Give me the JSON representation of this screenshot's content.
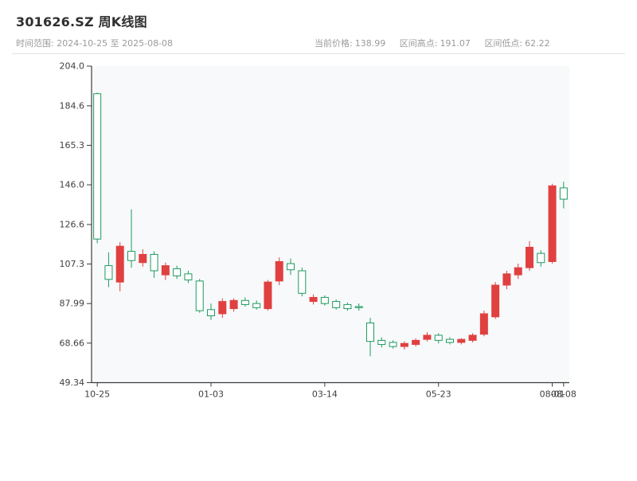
{
  "header": {
    "title": "301626.SZ 周K线图",
    "time_range": "时间范围: 2024-10-25 至 2025-08-08",
    "stats": [
      {
        "label": "当前价格:",
        "value": "138.99"
      },
      {
        "label": "区间高点:",
        "value": "191.07"
      },
      {
        "label": "区间低点:",
        "value": "62.22"
      }
    ]
  },
  "chart_data": {
    "type": "candlestick",
    "title": "301626.SZ 周K线图",
    "period": "weekly",
    "ylabel": "",
    "xlabel": "",
    "y_min": 49.34,
    "y_max": 204.0,
    "grid": false,
    "up_color": "#e04040",
    "down_color": "#1f9b5e",
    "axis_color": "#3c3c3c",
    "plot_bg": "#f7f9fb",
    "y_tick_labels": [
      "204.0",
      "184.6",
      "165.3",
      "146.0",
      "126.6",
      "107.3",
      "87.99",
      "68.66",
      "49.34"
    ],
    "x_ticks": [
      {
        "index": 0,
        "label": "10-25"
      },
      {
        "index": 10,
        "label": "01-03"
      },
      {
        "index": 20,
        "label": "03-14"
      },
      {
        "index": 30,
        "label": "05-23"
      },
      {
        "index": 40,
        "label": "08-01"
      },
      {
        "index": 41,
        "label": "08-08"
      }
    ],
    "candles": [
      {
        "date": "2024-10-25",
        "o": 190.5,
        "h": 191.07,
        "l": 117.5,
        "c": 119.5
      },
      {
        "date": "2024-11-01",
        "o": 106.5,
        "h": 113.0,
        "l": 96.0,
        "c": 99.8
      },
      {
        "date": "2024-11-08",
        "o": 98.5,
        "h": 118.0,
        "l": 94.0,
        "c": 116.0
      },
      {
        "date": "2024-11-15",
        "o": 113.5,
        "h": 134.0,
        "l": 105.5,
        "c": 109.0
      },
      {
        "date": "2024-11-22",
        "o": 108.0,
        "h": 114.5,
        "l": 106.0,
        "c": 112.0
      },
      {
        "date": "2024-11-29",
        "o": 112.0,
        "h": 113.5,
        "l": 100.5,
        "c": 104.0
      },
      {
        "date": "2024-12-06",
        "o": 102.0,
        "h": 108.0,
        "l": 99.5,
        "c": 106.5
      },
      {
        "date": "2024-12-13",
        "o": 105.0,
        "h": 106.5,
        "l": 100.0,
        "c": 101.5
      },
      {
        "date": "2024-12-20",
        "o": 102.5,
        "h": 104.0,
        "l": 98.0,
        "c": 99.5
      },
      {
        "date": "2024-12-27",
        "o": 99.0,
        "h": 100.0,
        "l": 83.5,
        "c": 84.5
      },
      {
        "date": "2025-01-03",
        "o": 85.0,
        "h": 88.0,
        "l": 80.0,
        "c": 82.0
      },
      {
        "date": "2025-01-10",
        "o": 83.0,
        "h": 90.5,
        "l": 81.0,
        "c": 89.0
      },
      {
        "date": "2025-01-17",
        "o": 85.5,
        "h": 90.5,
        "l": 84.0,
        "c": 89.5
      },
      {
        "date": "2025-01-24",
        "o": 89.5,
        "h": 91.0,
        "l": 86.5,
        "c": 87.5
      },
      {
        "date": "2025-01-31",
        "o": 88.0,
        "h": 89.5,
        "l": 85.0,
        "c": 86.0
      },
      {
        "date": "2025-02-07",
        "o": 85.5,
        "h": 99.5,
        "l": 84.5,
        "c": 98.5
      },
      {
        "date": "2025-02-14",
        "o": 99.0,
        "h": 110.5,
        "l": 97.0,
        "c": 108.5
      },
      {
        "date": "2025-02-21",
        "o": 107.5,
        "h": 110.0,
        "l": 102.0,
        "c": 104.5
      },
      {
        "date": "2025-02-28",
        "o": 104.0,
        "h": 105.5,
        "l": 91.5,
        "c": 93.0
      },
      {
        "date": "2025-03-07",
        "o": 89.0,
        "h": 92.5,
        "l": 87.5,
        "c": 91.0
      },
      {
        "date": "2025-03-14",
        "o": 91.0,
        "h": 92.0,
        "l": 87.0,
        "c": 88.0
      },
      {
        "date": "2025-03-21",
        "o": 89.0,
        "h": 90.0,
        "l": 85.0,
        "c": 86.0
      },
      {
        "date": "2025-03-28",
        "o": 87.5,
        "h": 88.5,
        "l": 84.5,
        "c": 85.5
      },
      {
        "date": "2025-04-04",
        "o": 86.5,
        "h": 88.0,
        "l": 84.5,
        "c": 86.0
      },
      {
        "date": "2025-04-11",
        "o": 78.5,
        "h": 81.0,
        "l": 62.22,
        "c": 69.5
      },
      {
        "date": "2025-04-18",
        "o": 70.0,
        "h": 71.5,
        "l": 66.5,
        "c": 68.0
      },
      {
        "date": "2025-04-25",
        "o": 69.0,
        "h": 70.0,
        "l": 66.0,
        "c": 67.0
      },
      {
        "date": "2025-05-02",
        "o": 67.0,
        "h": 69.5,
        "l": 65.5,
        "c": 68.5
      },
      {
        "date": "2025-05-09",
        "o": 68.0,
        "h": 71.0,
        "l": 67.0,
        "c": 70.0
      },
      {
        "date": "2025-05-16",
        "o": 70.5,
        "h": 74.0,
        "l": 69.5,
        "c": 72.5
      },
      {
        "date": "2025-05-23",
        "o": 72.5,
        "h": 73.5,
        "l": 68.5,
        "c": 70.0
      },
      {
        "date": "2025-05-30",
        "o": 70.5,
        "h": 71.5,
        "l": 68.0,
        "c": 69.0
      },
      {
        "date": "2025-06-06",
        "o": 69.0,
        "h": 71.0,
        "l": 68.0,
        "c": 70.5
      },
      {
        "date": "2025-06-13",
        "o": 70.0,
        "h": 73.5,
        "l": 69.0,
        "c": 72.5
      },
      {
        "date": "2025-06-20",
        "o": 73.0,
        "h": 84.5,
        "l": 72.0,
        "c": 83.0
      },
      {
        "date": "2025-06-27",
        "o": 81.5,
        "h": 98.5,
        "l": 80.5,
        "c": 97.0
      },
      {
        "date": "2025-07-04",
        "o": 97.0,
        "h": 104.0,
        "l": 95.0,
        "c": 102.5
      },
      {
        "date": "2025-07-11",
        "o": 102.0,
        "h": 107.5,
        "l": 100.0,
        "c": 105.5
      },
      {
        "date": "2025-07-18",
        "o": 105.5,
        "h": 118.5,
        "l": 104.0,
        "c": 115.5
      },
      {
        "date": "2025-07-25",
        "o": 112.5,
        "h": 114.0,
        "l": 106.0,
        "c": 108.0
      },
      {
        "date": "2025-08-01",
        "o": 108.5,
        "h": 146.5,
        "l": 107.5,
        "c": 145.5
      },
      {
        "date": "2025-08-08",
        "o": 144.5,
        "h": 147.5,
        "l": 134.5,
        "c": 138.99
      }
    ]
  }
}
